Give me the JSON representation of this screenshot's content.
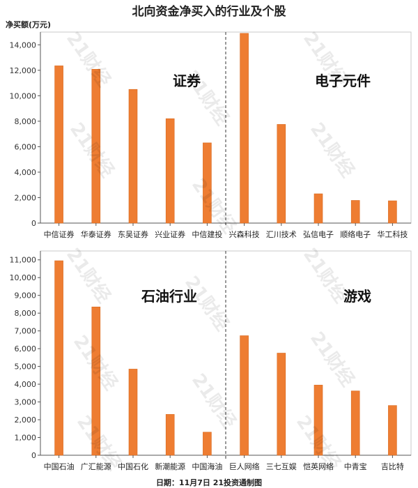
{
  "title": "北向资金净买入的行业及个股",
  "unit_label": "净买额(万元)",
  "footer": "日期：11月7日 21投资通制图",
  "watermark": "21财经",
  "colors": {
    "bar": "#ee7d32",
    "bar_edge": "#d86a20",
    "axis": "#555555"
  },
  "chart_data": [
    {
      "type": "bar",
      "ylim": [
        0,
        15000
      ],
      "yticks": [
        0,
        2000,
        4000,
        6000,
        8000,
        10000,
        12000,
        14000
      ],
      "ytick_labels": [
        "0",
        "2,000",
        "4,000",
        "6,000",
        "8,000",
        "10,000",
        "12,000",
        "14,000"
      ],
      "groups": [
        {
          "label": "证券",
          "categories": [
            "中信证券",
            "华泰证券",
            "东吴证券",
            "兴业证券",
            "中信建投"
          ],
          "values": [
            12350,
            12080,
            10500,
            8200,
            6300
          ]
        },
        {
          "label": "电子元件",
          "categories": [
            "兴森科技",
            "汇川技术",
            "弘信电子",
            "顺络电子",
            "华工科技"
          ],
          "values": [
            14900,
            7750,
            2300,
            1780,
            1750
          ]
        }
      ]
    },
    {
      "type": "bar",
      "ylim": [
        0,
        11500
      ],
      "yticks": [
        0,
        1000,
        2000,
        3000,
        4000,
        5000,
        6000,
        7000,
        8000,
        9000,
        10000,
        11000
      ],
      "ytick_labels": [
        "0",
        "1,000",
        "2,000",
        "3,000",
        "4,000",
        "5,000",
        "6,000",
        "7,000",
        "8,000",
        "9,000",
        "10,000",
        "11,000"
      ],
      "groups": [
        {
          "label": "石油行业",
          "categories": [
            "中国石油",
            "广汇能源",
            "中国石化",
            "新潮能源",
            "中国海油"
          ],
          "values": [
            10950,
            8350,
            4850,
            2300,
            1300
          ]
        },
        {
          "label": "游戏",
          "categories": [
            "巨人网络",
            "三七互娱",
            "恺英网络",
            "中青宝",
            "吉比特"
          ],
          "values": [
            6730,
            5750,
            3950,
            3620,
            2800
          ]
        }
      ]
    }
  ]
}
